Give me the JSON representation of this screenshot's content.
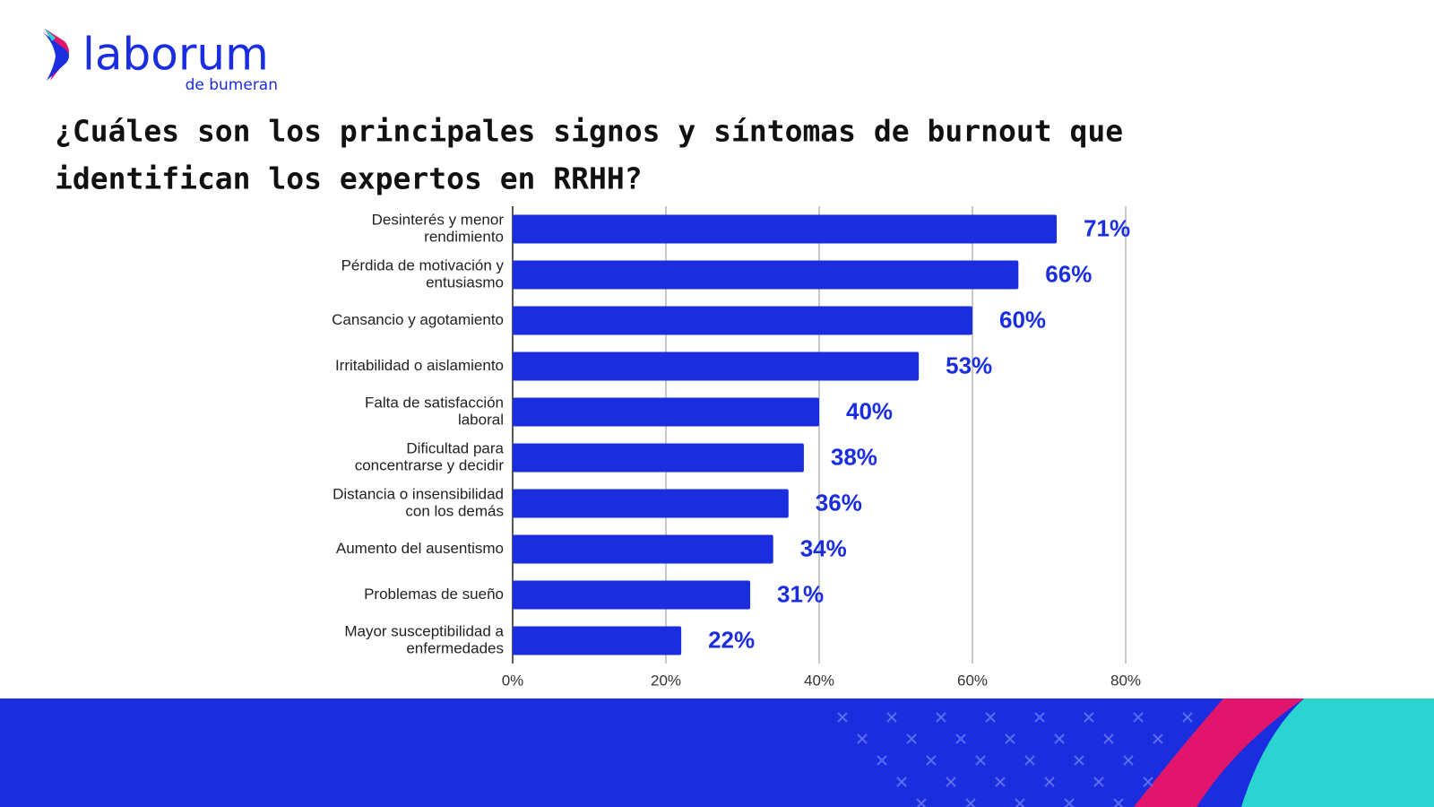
{
  "logo": {
    "name": "laborum",
    "tagline": "de bumeran"
  },
  "chart_data": {
    "type": "barh",
    "title": [
      "¿Cuáles son los principales signos y síntomas de burnout que",
      "identifican los expertos en RRHH?"
    ],
    "categories": [
      [
        "Desinterés y menor",
        "rendimiento"
      ],
      [
        "Pérdida de motivación y",
        "entusiasmo"
      ],
      [
        "Cansancio y agotamiento"
      ],
      [
        "Irritabilidad o aislamiento"
      ],
      [
        "Falta de satisfacción",
        "laboral"
      ],
      [
        "Dificultad para",
        "concentrarse y decidir"
      ],
      [
        "Distancia o insensibilidad",
        "con los demás"
      ],
      [
        "Aumento del ausentismo"
      ],
      [
        "Problemas de sueño"
      ],
      [
        "Mayor susceptibilidad a",
        "enfermedades"
      ]
    ],
    "values": [
      71,
      66,
      60,
      53,
      40,
      38,
      36,
      34,
      31,
      22
    ],
    "value_labels": [
      "71%",
      "66%",
      "60%",
      "53%",
      "40%",
      "38%",
      "36%",
      "34%",
      "31%",
      "22%"
    ],
    "color": "#1a2ee0",
    "xlim": [
      0,
      80
    ],
    "xticks": [
      {
        "value": 0,
        "label": "0%"
      },
      {
        "value": 20,
        "label": "20%"
      },
      {
        "value": 40,
        "label": "40%"
      },
      {
        "value": 60,
        "label": "60%"
      },
      {
        "value": 80,
        "label": "80%"
      }
    ],
    "grid": true
  }
}
